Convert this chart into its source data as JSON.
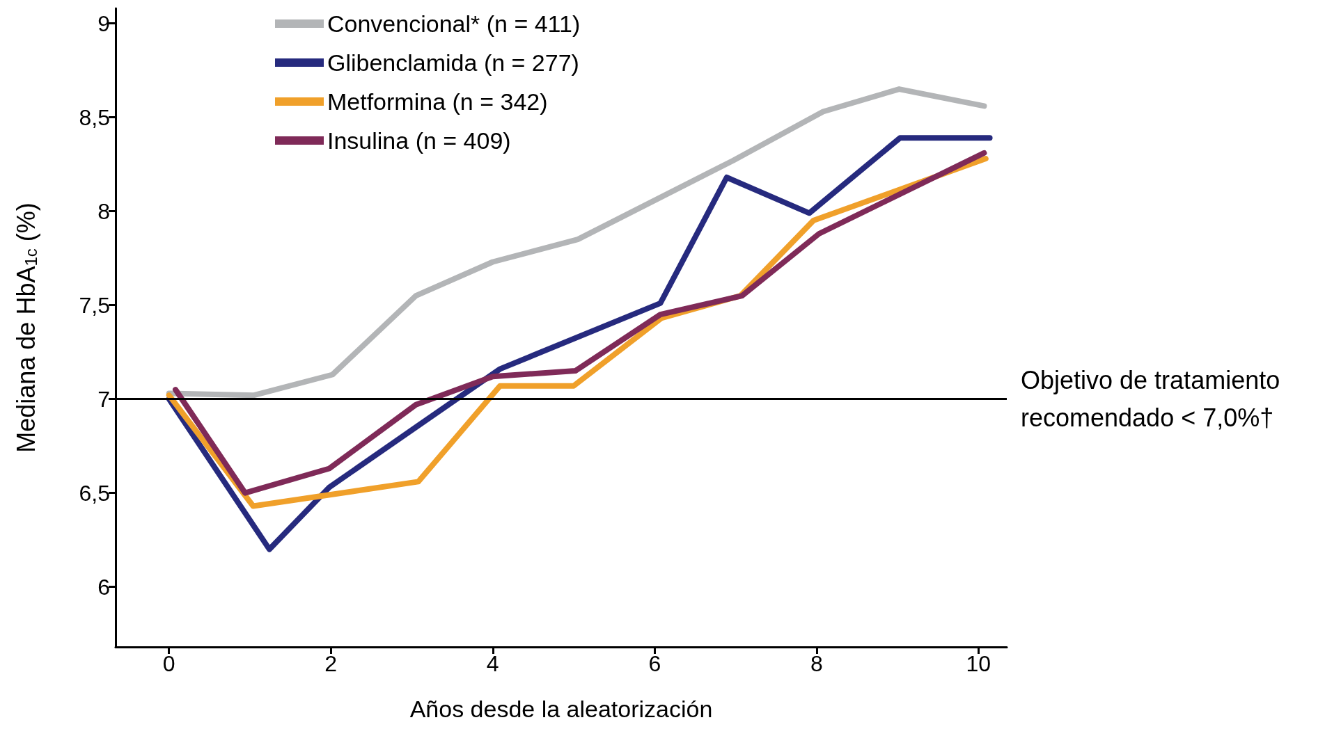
{
  "chart_data": {
    "type": "line",
    "xlabel": "Años desde la aleatorización",
    "ylabel": "Mediana de HbA$_{1c}$ (%)",
    "xlim": [
      -0.66,
      10.35
    ],
    "xticks": [
      0,
      2,
      4,
      6,
      8,
      10
    ],
    "ylim": [
      5.68,
      9.08
    ],
    "yticks": [
      {
        "value": 6,
        "label": "6"
      },
      {
        "value": 6.5,
        "label": "6,5"
      },
      {
        "value": 7,
        "label": "7"
      },
      {
        "value": 7.5,
        "label": "7,5"
      },
      {
        "value": 8,
        "label": "8"
      },
      {
        "value": 8.5,
        "label": "8,5"
      },
      {
        "value": 9,
        "label": "9"
      }
    ],
    "grid": false,
    "legend": "top left",
    "marker": "none",
    "line_style": "solid",
    "series": [
      {
        "name": "Convencional* (n = 411)",
        "color": "#b3b5b7",
        "x": [
          0,
          1.05,
          2.02,
          3.05,
          4.0,
          5.05,
          6.97,
          8.08,
          9.02,
          10.07
        ],
        "values": [
          7.03,
          7.02,
          7.13,
          7.55,
          7.73,
          7.85,
          8.27,
          8.53,
          8.65,
          8.56
        ]
      },
      {
        "name": "Glibenclamida (n = 277)",
        "color": "#262a7e",
        "x": [
          0,
          1.24,
          1.98,
          3.05,
          4.09,
          6.07,
          6.89,
          7.91,
          9.03,
          10.14
        ],
        "values": [
          7.0,
          6.2,
          6.53,
          6.85,
          7.16,
          7.51,
          8.18,
          7.99,
          8.39,
          8.39
        ]
      },
      {
        "name": "Metformina (n = 342)",
        "color": "#f0a02a",
        "x": [
          0,
          1.04,
          3.08,
          4.09,
          5.0,
          6.08,
          7.06,
          7.96,
          10.09
        ],
        "values": [
          7.02,
          6.43,
          6.56,
          7.07,
          7.07,
          7.43,
          7.55,
          7.95,
          8.28
        ]
      },
      {
        "name": "Insulina (n = 409)",
        "color": "#7f2a58",
        "x": [
          0.08,
          0.94,
          1.98,
          3.05,
          4.0,
          5.02,
          6.07,
          7.08,
          8.03,
          10.07
        ],
        "values": [
          7.05,
          6.5,
          6.63,
          6.97,
          7.12,
          7.15,
          7.45,
          7.55,
          7.88,
          8.31
        ]
      }
    ],
    "ref_lines": [
      {
        "axis": "y",
        "value": 7,
        "label": "Objetivo de tratamiento recomendado < 7,0%†",
        "color": "#000000",
        "line_style": "solid"
      }
    ]
  }
}
